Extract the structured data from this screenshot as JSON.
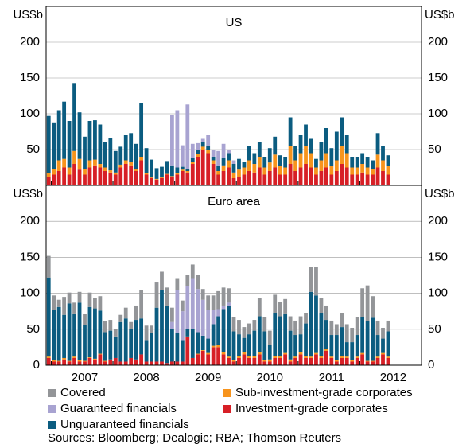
{
  "chart_data": [
    {
      "type": "stacked_bar",
      "title": "US",
      "ylabel": "US$b",
      "categories": [
        null,
        null,
        null,
        null,
        null,
        null,
        null,
        "2007",
        null,
        null,
        null,
        null,
        null,
        null,
        null,
        null,
        null,
        null,
        null,
        "2008",
        null,
        null,
        null,
        null,
        null,
        null,
        null,
        null,
        null,
        null,
        null,
        "2009",
        null,
        null,
        null,
        null,
        null,
        null,
        null,
        null,
        null,
        null,
        null,
        "2010",
        null,
        null,
        null,
        null,
        null,
        null,
        null,
        null,
        null,
        null,
        null,
        "2011",
        null,
        null,
        null,
        null,
        null,
        null,
        null,
        null,
        null,
        null,
        null,
        "2012",
        null,
        null,
        null,
        null,
        null
      ],
      "ylim": [
        0,
        250
      ],
      "yticks": [
        50,
        100,
        150,
        200
      ],
      "series": [
        {
          "values": [
            0,
            0,
            0,
            0,
            0,
            0,
            0,
            0,
            0,
            0,
            0,
            0,
            0,
            0,
            0,
            0,
            0,
            0,
            0,
            0,
            0,
            0,
            0,
            0,
            0,
            0,
            0,
            0,
            0,
            0,
            0,
            0,
            0,
            0,
            0,
            0,
            0,
            0,
            0,
            0,
            0,
            0,
            0,
            0,
            0,
            0,
            0,
            0,
            0,
            0,
            0,
            0,
            0,
            0,
            0,
            0,
            0,
            0,
            0,
            0,
            0,
            0,
            0,
            0,
            0,
            0,
            0,
            null,
            null,
            null,
            null,
            null,
            null
          ]
        },
        {
          "values": [
            0,
            0,
            0,
            0,
            0,
            0,
            0,
            0,
            0,
            0,
            0,
            0,
            0,
            0,
            0,
            0,
            0,
            0,
            0,
            0,
            0,
            0,
            0,
            0,
            70,
            80,
            30,
            90,
            20,
            10,
            5,
            15,
            10,
            20,
            20,
            5,
            5,
            0,
            0,
            0,
            0,
            0,
            0,
            0,
            0,
            0,
            0,
            0,
            0,
            0,
            0,
            0,
            0,
            0,
            0,
            0,
            0,
            0,
            0,
            0,
            0,
            0,
            0,
            0,
            0,
            0,
            0,
            null,
            null,
            null,
            null,
            null,
            null
          ]
        },
        {
          "values": [
            80,
            65,
            70,
            80,
            65,
            95,
            65,
            45,
            55,
            55,
            55,
            35,
            45,
            30,
            25,
            35,
            40,
            35,
            75,
            35,
            25,
            15,
            15,
            18,
            15,
            8,
            4,
            3,
            5,
            5,
            6,
            5,
            5,
            8,
            10,
            10,
            12,
            15,
            8,
            20,
            15,
            20,
            15,
            20,
            25,
            15,
            15,
            40,
            20,
            25,
            30,
            20,
            12,
            25,
            35,
            25,
            40,
            40,
            25,
            15,
            15,
            15,
            15,
            12,
            30,
            20,
            15,
            null,
            null,
            null,
            null,
            null,
            null
          ]
        },
        {
          "values": [
            5,
            8,
            15,
            12,
            10,
            18,
            15,
            8,
            10,
            8,
            5,
            5,
            3,
            3,
            4,
            5,
            5,
            3,
            5,
            2,
            1,
            1,
            1,
            1,
            1,
            2,
            2,
            2,
            3,
            4,
            4,
            5,
            5,
            5,
            8,
            10,
            8,
            10,
            10,
            15,
            12,
            15,
            10,
            12,
            18,
            12,
            10,
            25,
            15,
            20,
            25,
            20,
            10,
            15,
            20,
            12,
            15,
            25,
            20,
            10,
            10,
            12,
            10,
            8,
            18,
            15,
            12,
            null,
            null,
            null,
            null,
            null,
            null
          ]
        },
        {
          "values": [
            12,
            15,
            20,
            25,
            15,
            30,
            22,
            15,
            25,
            28,
            25,
            20,
            18,
            15,
            25,
            30,
            28,
            20,
            35,
            15,
            10,
            8,
            10,
            15,
            12,
            15,
            20,
            18,
            30,
            40,
            50,
            45,
            30,
            15,
            20,
            25,
            10,
            12,
            15,
            20,
            18,
            25,
            15,
            20,
            25,
            15,
            15,
            30,
            20,
            25,
            30,
            25,
            15,
            20,
            25,
            15,
            20,
            30,
            25,
            15,
            15,
            18,
            15,
            15,
            25,
            20,
            15,
            null,
            null,
            null,
            null,
            null,
            null
          ]
        }
      ]
    },
    {
      "type": "stacked_bar",
      "title": "Euro area",
      "ylabel": "US$b",
      "categories": [
        null,
        null,
        null,
        null,
        null,
        null,
        null,
        "2007",
        null,
        null,
        null,
        null,
        null,
        null,
        null,
        null,
        null,
        null,
        null,
        "2008",
        null,
        null,
        null,
        null,
        null,
        null,
        null,
        null,
        null,
        null,
        null,
        "2009",
        null,
        null,
        null,
        null,
        null,
        null,
        null,
        null,
        null,
        null,
        null,
        "2010",
        null,
        null,
        null,
        null,
        null,
        null,
        null,
        null,
        null,
        null,
        null,
        "2011",
        null,
        null,
        null,
        null,
        null,
        null,
        null,
        null,
        null,
        null,
        null,
        "2012",
        null,
        null,
        null,
        null,
        null
      ],
      "ylim": [
        0,
        250
      ],
      "yticks": [
        0,
        50,
        100,
        150,
        200
      ],
      "series": [
        {
          "values": [
            30,
            20,
            10,
            25,
            15,
            15,
            15,
            15,
            20,
            15,
            20,
            15,
            15,
            10,
            10,
            15,
            10,
            20,
            40,
            20,
            10,
            35,
            25,
            25,
            20,
            15,
            15,
            15,
            20,
            20,
            15,
            20,
            20,
            25,
            25,
            20,
            20,
            20,
            15,
            15,
            15,
            25,
            20,
            20,
            25,
            20,
            20,
            20,
            20,
            25,
            15,
            35,
            40,
            20,
            20,
            20,
            15,
            20,
            25,
            20,
            25,
            40,
            50,
            30,
            20,
            15,
            15,
            null,
            null,
            null,
            null,
            null,
            null
          ]
        },
        {
          "values": [
            0,
            0,
            0,
            0,
            0,
            0,
            0,
            0,
            0,
            0,
            0,
            0,
            0,
            0,
            0,
            0,
            0,
            0,
            0,
            0,
            0,
            0,
            0,
            0,
            10,
            60,
            40,
            60,
            70,
            60,
            50,
            40,
            20,
            10,
            5,
            5,
            0,
            0,
            0,
            0,
            0,
            0,
            0,
            0,
            0,
            0,
            0,
            0,
            0,
            0,
            0,
            0,
            0,
            0,
            0,
            0,
            0,
            0,
            0,
            0,
            0,
            0,
            0,
            0,
            0,
            0,
            0,
            null,
            null,
            null,
            null,
            null,
            null
          ]
        },
        {
          "values": [
            110,
            70,
            75,
            60,
            80,
            60,
            80,
            50,
            70,
            70,
            60,
            40,
            40,
            30,
            55,
            60,
            40,
            55,
            50,
            30,
            40,
            75,
            100,
            80,
            45,
            40,
            30,
            10,
            40,
            30,
            20,
            20,
            30,
            40,
            60,
            70,
            40,
            30,
            20,
            30,
            35,
            50,
            40,
            20,
            60,
            55,
            55,
            40,
            30,
            25,
            45,
            90,
            80,
            60,
            40,
            30,
            35,
            40,
            20,
            25,
            30,
            50,
            55,
            60,
            30,
            20,
            35,
            null,
            null,
            null,
            null,
            null,
            null
          ]
        },
        {
          "values": [
            2,
            2,
            1,
            2,
            1,
            2,
            2,
            1,
            1,
            1,
            1,
            1,
            0,
            0,
            0,
            0,
            0,
            0,
            0,
            0,
            0,
            0,
            0,
            0,
            0,
            0,
            0,
            0,
            0,
            1,
            1,
            2,
            2,
            3,
            3,
            2,
            2,
            3,
            3,
            3,
            3,
            3,
            2,
            3,
            3,
            3,
            2,
            3,
            2,
            3,
            3,
            2,
            2,
            3,
            3,
            2,
            2,
            3,
            2,
            2,
            2,
            2,
            1,
            1,
            2,
            2,
            2,
            null,
            null,
            null,
            null,
            null,
            null
          ]
        },
        {
          "values": [
            10,
            5,
            5,
            8,
            5,
            10,
            5,
            5,
            10,
            8,
            15,
            5,
            8,
            10,
            5,
            5,
            10,
            8,
            15,
            5,
            5,
            5,
            5,
            3,
            5,
            5,
            5,
            40,
            10,
            15,
            20,
            15,
            25,
            25,
            15,
            10,
            5,
            10,
            15,
            10,
            10,
            15,
            5,
            5,
            10,
            10,
            15,
            5,
            10,
            15,
            10,
            10,
            15,
            10,
            20,
            10,
            5,
            10,
            10,
            5,
            10,
            15,
            5,
            5,
            10,
            15,
            10,
            null,
            null,
            null,
            null,
            null,
            null
          ]
        }
      ]
    }
  ],
  "legend": [
    {
      "name": "Covered",
      "color": "#939598"
    },
    {
      "name": "Guaranteed financials",
      "color": "#a8a3d1"
    },
    {
      "name": "Unguaranteed financials",
      "color": "#0b5c80"
    },
    {
      "name": "Sub-investment-grade corporates",
      "color": "#f7941d"
    },
    {
      "name": "Investment-grade corporates",
      "color": "#d71f26"
    }
  ],
  "sources": "Sources: Bloomberg; Dealogic; RBA; Thomson Reuters"
}
